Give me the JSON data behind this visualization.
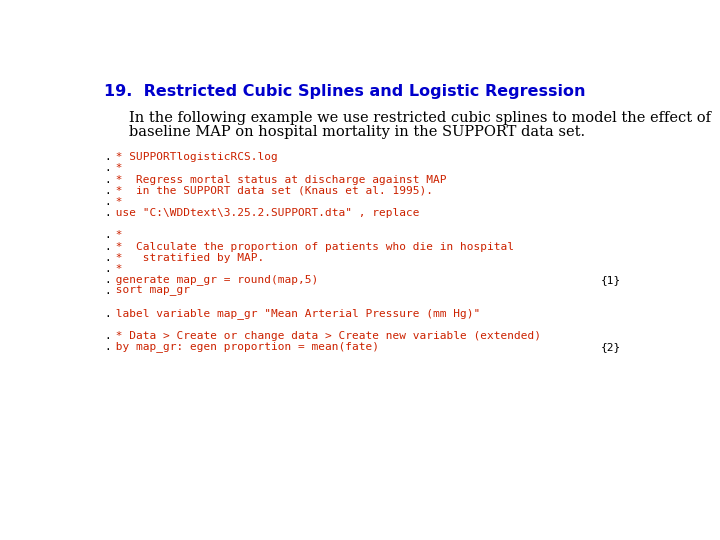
{
  "title": "19.  Restricted Cubic Splines and Logistic Regression",
  "title_color": "#0000CC",
  "title_fontsize": 11.5,
  "body_text_line1": "In the following example we use restricted cubic splines to model the effect of",
  "body_text_line2": "baseline MAP on hospital mortality in the SUPPORT data set.",
  "body_color": "#000000",
  "body_fontsize": 10.5,
  "code_color": "#CC2200",
  "code_fontsize": 8.0,
  "bg_color": "#FFFFFF",
  "dot_color": "#000000",
  "code_lines": [
    {
      "text": ". * SUPPORTlogisticRCS.log",
      "annotation": ""
    },
    {
      "text": ". *",
      "annotation": ""
    },
    {
      "text": ". *  Regress mortal status at discharge against MAP",
      "annotation": ""
    },
    {
      "text": ". *  in the SUPPORT data set (Knaus et al. 1995).",
      "annotation": ""
    },
    {
      "text": ". *",
      "annotation": ""
    },
    {
      "text": ". use \"C:\\WDDtext\\3.25.2.SUPPORT.dta\" , replace",
      "annotation": ""
    },
    {
      "text": "",
      "annotation": ""
    },
    {
      "text": ". *",
      "annotation": ""
    },
    {
      "text": ". *  Calculate the proportion of patients who die in hospital",
      "annotation": ""
    },
    {
      "text": ". *   stratified by MAP.",
      "annotation": ""
    },
    {
      "text": ". *",
      "annotation": ""
    },
    {
      "text": ". generate map_gr = round(map,5)",
      "annotation": "{1}"
    },
    {
      "text": ". sort map_gr",
      "annotation": ""
    },
    {
      "text": "",
      "annotation": ""
    },
    {
      "text": ". label variable map_gr \"Mean Arterial Pressure (mm Hg)\"",
      "annotation": ""
    },
    {
      "text": "",
      "annotation": ""
    },
    {
      "text": ". * Data > Create or change data > Create new variable (extended)",
      "annotation": ""
    },
    {
      "text": ". by map_gr: egen proportion = mean(fate)",
      "annotation": "{2}"
    }
  ],
  "annotation_color": "#000000",
  "annotation_fontsize": 8.0
}
